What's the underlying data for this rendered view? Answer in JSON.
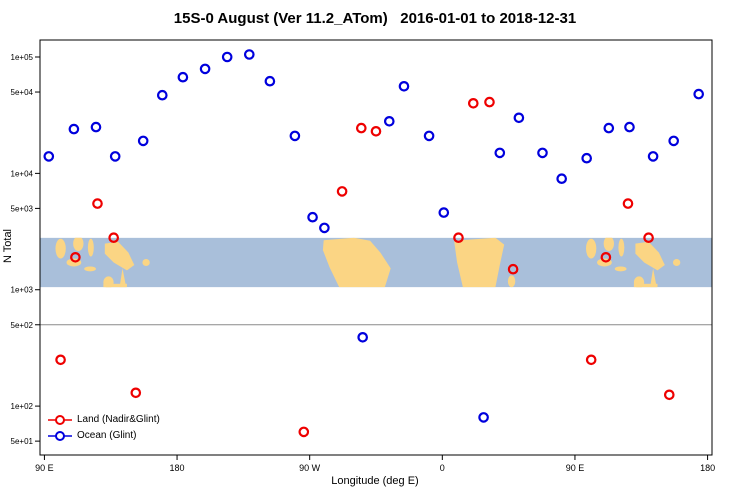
{
  "chart_data": {
    "type": "scatter",
    "title": "15S-0 August (Ver 11.2_ATom)   2016-01-01 to 2018-12-31",
    "xlabel": "Longitude (deg E)",
    "ylabel": "N Total",
    "x_axis": {
      "range": [
        87,
        543
      ],
      "ticks": [
        90,
        180,
        270,
        360,
        450,
        540
      ],
      "labels": [
        "90 E",
        "180",
        "90 W",
        "0",
        "90 E",
        "180"
      ]
    },
    "y_axis": {
      "scale": "log",
      "range": [
        38,
        140000
      ],
      "ticks": [
        100000,
        50000,
        10000,
        5000,
        1000,
        500,
        100,
        50
      ],
      "labels": [
        "1e+05",
        "5e+04",
        "1e+04",
        "5e+03",
        "1e+03",
        "5e+02",
        "1e+02",
        "5e+01"
      ]
    },
    "reference_line": 500,
    "map_band": {
      "value_top": 2800,
      "value_bottom": 1050,
      "ocean_color": "#a9bfda",
      "land_color": "#fbd584",
      "land": [
        {
          "type": "e",
          "lon": 101,
          "lr": 3.5,
          "f": 0.22,
          "fr": 0.2,
          "dup": true
        },
        {
          "type": "e",
          "lon": 110,
          "lr": 5,
          "f": 0.5,
          "fr": 0.08,
          "dup": true
        },
        {
          "type": "e",
          "lon": 113,
          "lr": 3.5,
          "f": 0.12,
          "fr": 0.15,
          "dup": true
        },
        {
          "type": "e",
          "lon": 121.5,
          "lr": 2,
          "f": 0.2,
          "fr": 0.18,
          "dup": true
        },
        {
          "type": "e",
          "lon": 121,
          "lr": 4,
          "f": 0.63,
          "fr": 0.05,
          "dup": true
        },
        {
          "type": "p",
          "pts": [
            [
              131,
              0.12
            ],
            [
              140,
              0.08
            ],
            [
              147,
              0.3
            ],
            [
              151,
              0.55
            ],
            [
              146,
              0.66
            ],
            [
              137,
              0.5
            ],
            [
              131,
              0.32
            ]
          ],
          "dup": true
        },
        {
          "type": "e",
          "lon": 133.5,
          "lr": 3.5,
          "f": 0.9,
          "fr": 0.12,
          "dup": true
        },
        {
          "type": "p",
          "pts": [
            [
              141,
              1
            ],
            [
              143,
              0.62
            ],
            [
              145.5,
              1
            ]
          ],
          "dup": true
        },
        {
          "type": "r",
          "lon0": 130,
          "lon1": 146,
          "f0": 0.93,
          "f1": 1,
          "dup": true
        },
        {
          "type": "e",
          "lon": 159,
          "lr": 2.5,
          "f": 0.5,
          "fr": 0.07,
          "dup": true
        },
        {
          "type": "p",
          "pts": [
            [
              279.5,
              0.05
            ],
            [
              300,
              0
            ],
            [
              311,
              0.06
            ],
            [
              318,
              0.3
            ],
            [
              325,
              0.62
            ],
            [
              321,
              1
            ],
            [
              290,
              1
            ],
            [
              283.5,
              0.6
            ],
            [
              279,
              0.25
            ]
          ]
        },
        {
          "type": "p",
          "pts": [
            [
              368,
              0.06
            ],
            [
              396,
              0
            ],
            [
              402,
              0.14
            ],
            [
              399,
              0.55
            ],
            [
              396,
              1
            ],
            [
              374,
              1
            ],
            [
              370,
              0.5
            ]
          ]
        },
        {
          "type": "e",
          "lon": 407,
          "lr": 2.5,
          "f": 0.88,
          "fr": 0.12
        }
      ]
    },
    "series": [
      {
        "name": "Land (Nadir&Glint)",
        "color": "#ee0000",
        "points": [
          [
            101,
            250
          ],
          [
            111,
            1900
          ],
          [
            126,
            5500
          ],
          [
            137,
            2800
          ],
          [
            152,
            130
          ],
          [
            266,
            60
          ],
          [
            292,
            7000
          ],
          [
            305,
            24500
          ],
          [
            315,
            23000
          ],
          [
            371,
            2800
          ],
          [
            381,
            40000
          ],
          [
            392,
            41000
          ],
          [
            408,
            1500
          ],
          [
            461,
            250
          ],
          [
            471,
            1900
          ],
          [
            486,
            5500
          ],
          [
            500,
            2800
          ],
          [
            514,
            125
          ]
        ]
      },
      {
        "name": "Ocean (Glint)",
        "color": "#0000dd",
        "points": [
          [
            93,
            14000
          ],
          [
            110,
            24000
          ],
          [
            125,
            25000
          ],
          [
            138,
            14000
          ],
          [
            157,
            19000
          ],
          [
            170,
            47000
          ],
          [
            184,
            67000
          ],
          [
            199,
            79000
          ],
          [
            214,
            100000
          ],
          [
            229,
            105000
          ],
          [
            243,
            62000
          ],
          [
            260,
            21000
          ],
          [
            272,
            4200
          ],
          [
            280,
            3400
          ],
          [
            306,
            390
          ],
          [
            324,
            28000
          ],
          [
            334,
            56000
          ],
          [
            351,
            21000
          ],
          [
            361,
            4600
          ],
          [
            388,
            80
          ],
          [
            399,
            15000
          ],
          [
            412,
            30000
          ],
          [
            428,
            15000
          ],
          [
            441,
            9000
          ],
          [
            458,
            13500
          ],
          [
            473,
            24500
          ],
          [
            487,
            25000
          ],
          [
            503,
            14000
          ],
          [
            517,
            19000
          ],
          [
            534,
            48000
          ]
        ]
      }
    ],
    "legend": {
      "position": "bottom-left"
    }
  }
}
